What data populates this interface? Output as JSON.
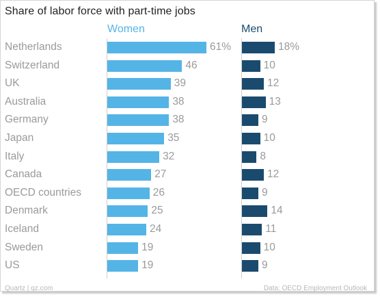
{
  "chart_data": {
    "type": "bar",
    "title": "Share of labor force with part-time jobs",
    "categories": [
      "Netherlands",
      "Switzerland",
      "UK",
      "Australia",
      "Germany",
      "Japan",
      "Italy",
      "Canada",
      "OECD countries",
      "Denmark",
      "Iceland",
      "Sweden",
      "US"
    ],
    "series": [
      {
        "name": "Women",
        "values": [
          61,
          46,
          39,
          38,
          38,
          35,
          32,
          27,
          26,
          25,
          24,
          19,
          19
        ],
        "labels": [
          "61%",
          "46",
          "39",
          "38",
          "38",
          "35",
          "32",
          "27",
          "26",
          "25",
          "24",
          "19",
          "19"
        ],
        "color": "#54b4e6"
      },
      {
        "name": "Men",
        "values": [
          18,
          10,
          12,
          13,
          9,
          10,
          8,
          12,
          9,
          14,
          11,
          10,
          9
        ],
        "labels": [
          "18%",
          "10",
          "12",
          "13",
          "9",
          "10",
          "8",
          "12",
          "9",
          "14",
          "11",
          "10",
          "9"
        ],
        "color": "#1a4b6e"
      }
    ],
    "grid": false
  },
  "footer": {
    "left": "Quartz | qz.com",
    "right": "Data: OECD Employment Outlook"
  }
}
